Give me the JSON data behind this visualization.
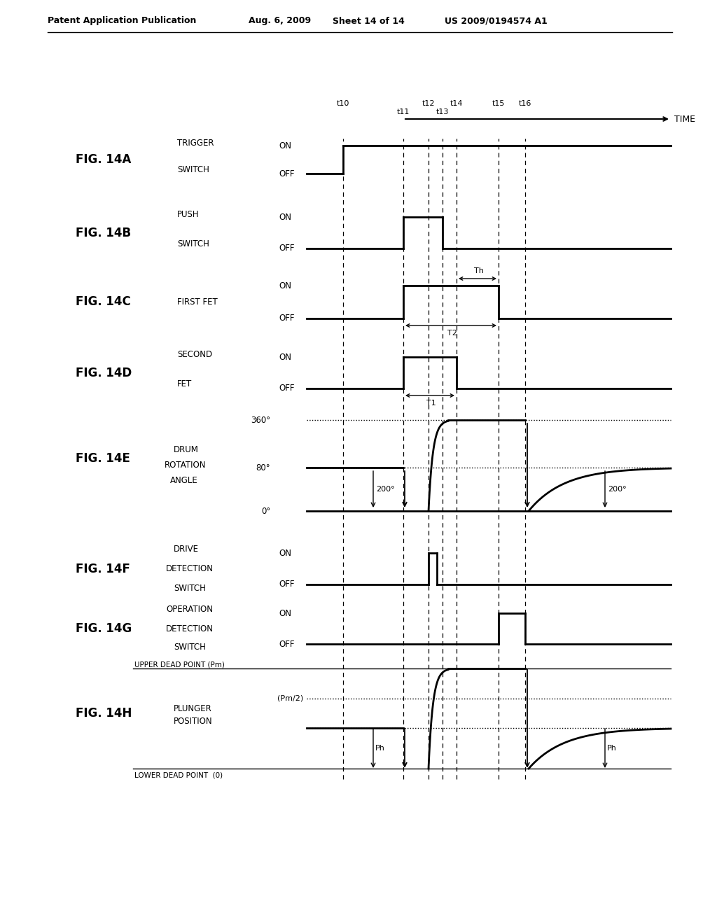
{
  "bg_color": "#ffffff",
  "header_text": "Patent Application Publication",
  "header_date": "Aug. 6, 2009",
  "header_sheet": "Sheet 14 of 14",
  "header_patent": "US 2009/0194574 A1",
  "time_arrow_label": "TIME",
  "time_labels": [
    "t10",
    "t11",
    "t12",
    "t13",
    "t14",
    "t15",
    "t16"
  ],
  "fig_labels": [
    "FIG. 14A",
    "FIG. 14B",
    "FIG. 14C",
    "FIG. 14D",
    "FIG. 14E",
    "FIG. 14F",
    "FIG. 14G",
    "FIG. 14H"
  ],
  "signal_names_a": [
    "TRIGGER",
    "SWITCH"
  ],
  "signal_names_b": [
    "PUSH",
    "SWITCH"
  ],
  "signal_names_c": [
    "FIRST FET"
  ],
  "signal_names_d": [
    "SECOND",
    "FET"
  ],
  "signal_names_e": [
    "DRUM",
    "ROTATION",
    "ANGLE"
  ],
  "signal_names_f": [
    "DRIVE",
    "DETECTION",
    "SWITCH"
  ],
  "signal_names_g": [
    "OPERATION",
    "DETECTION",
    "SWITCH"
  ],
  "signal_names_h": [
    "PLUNGER",
    "POSITION"
  ],
  "upper_dead_point": "UPPER DEAD POINT (Pm)",
  "lower_dead_point": "LOWER DEAD POINT  (0)",
  "plunger_pm2": "(Pm/2)",
  "plunger_ph": "Ph"
}
